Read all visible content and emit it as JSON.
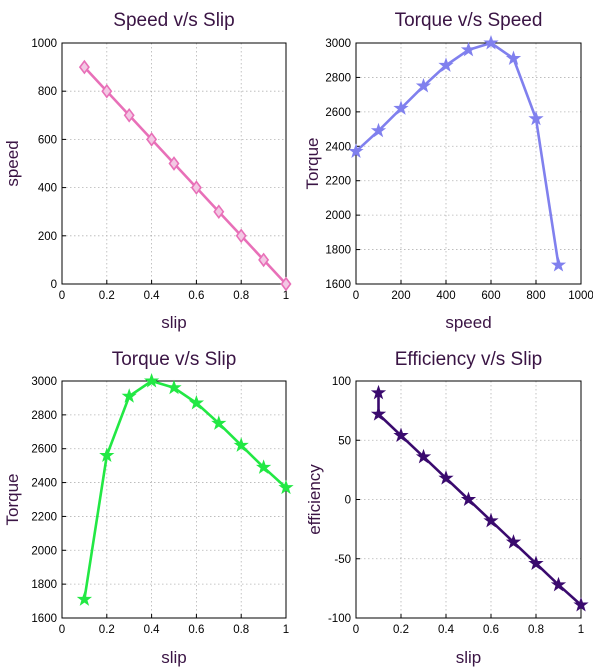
{
  "chart_data": [
    {
      "type": "line",
      "title": "Speed v/s Slip",
      "xlabel": "slip",
      "ylabel": "speed",
      "xlim": [
        0,
        1
      ],
      "ylim": [
        0,
        1000
      ],
      "xticks": [
        "0",
        "0.2",
        "0.4",
        "0.6",
        "0.8",
        "1"
      ],
      "yticks": [
        "0",
        "200",
        "400",
        "600",
        "800",
        "1000"
      ],
      "grid": true,
      "marker": "diamond",
      "color": "#e870b8",
      "series": [
        {
          "x": [
            0.1,
            0.2,
            0.3,
            0.4,
            0.5,
            0.6,
            0.7,
            0.8,
            0.9,
            1.0
          ],
          "values": [
            900,
            800,
            700,
            600,
            500,
            400,
            300,
            200,
            100,
            0
          ]
        }
      ]
    },
    {
      "type": "line",
      "title": "Torque v/s Speed",
      "xlabel": "speed",
      "ylabel": "Torque",
      "xlim": [
        0,
        1000
      ],
      "ylim": [
        1600,
        3000
      ],
      "xticks": [
        "0",
        "200",
        "400",
        "600",
        "800",
        "1000"
      ],
      "yticks": [
        "1600",
        "1800",
        "2000",
        "2200",
        "2400",
        "2600",
        "2800",
        "3000"
      ],
      "grid": true,
      "marker": "star",
      "color": "#8080ee",
      "series": [
        {
          "x": [
            0,
            100,
            200,
            300,
            400,
            500,
            600,
            700,
            800,
            900
          ],
          "values": [
            2370,
            2490,
            2620,
            2750,
            2870,
            2960,
            3000,
            2910,
            2560,
            1710
          ]
        }
      ]
    },
    {
      "type": "line",
      "title": "Torque v/s Slip",
      "xlabel": "slip",
      "ylabel": "Torque",
      "xlim": [
        0,
        1
      ],
      "ylim": [
        1600,
        3000
      ],
      "xticks": [
        "0",
        "0.2",
        "0.4",
        "0.6",
        "0.8",
        "1"
      ],
      "yticks": [
        "1600",
        "1800",
        "2000",
        "2200",
        "2400",
        "2600",
        "2800",
        "3000"
      ],
      "grid": true,
      "marker": "star",
      "color": "#22e844",
      "series": [
        {
          "x": [
            0.1,
            0.2,
            0.3,
            0.4,
            0.5,
            0.6,
            0.7,
            0.8,
            0.9,
            1.0
          ],
          "values": [
            1710,
            2560,
            2910,
            3000,
            2960,
            2870,
            2750,
            2620,
            2490,
            2370
          ]
        }
      ]
    },
    {
      "type": "line",
      "title": "Efficiency v/s Slip",
      "xlabel": "slip",
      "ylabel": "efficiency",
      "xlim": [
        0,
        1
      ],
      "ylim": [
        -100,
        100
      ],
      "xticks": [
        "0",
        "0.2",
        "0.4",
        "0.6",
        "0.8",
        "1"
      ],
      "yticks": [
        "-100",
        "-50",
        "0",
        "50",
        "100"
      ],
      "grid": true,
      "marker": "star",
      "color": "#3a0a6e",
      "series": [
        {
          "x": [
            0.1,
            0.1,
            0.2,
            0.3,
            0.4,
            0.5,
            0.6,
            0.7,
            0.8,
            0.9,
            1.0
          ],
          "values": [
            90,
            72,
            54,
            36,
            18,
            0,
            -18,
            -36,
            -54,
            -72,
            -89
          ]
        }
      ]
    }
  ]
}
